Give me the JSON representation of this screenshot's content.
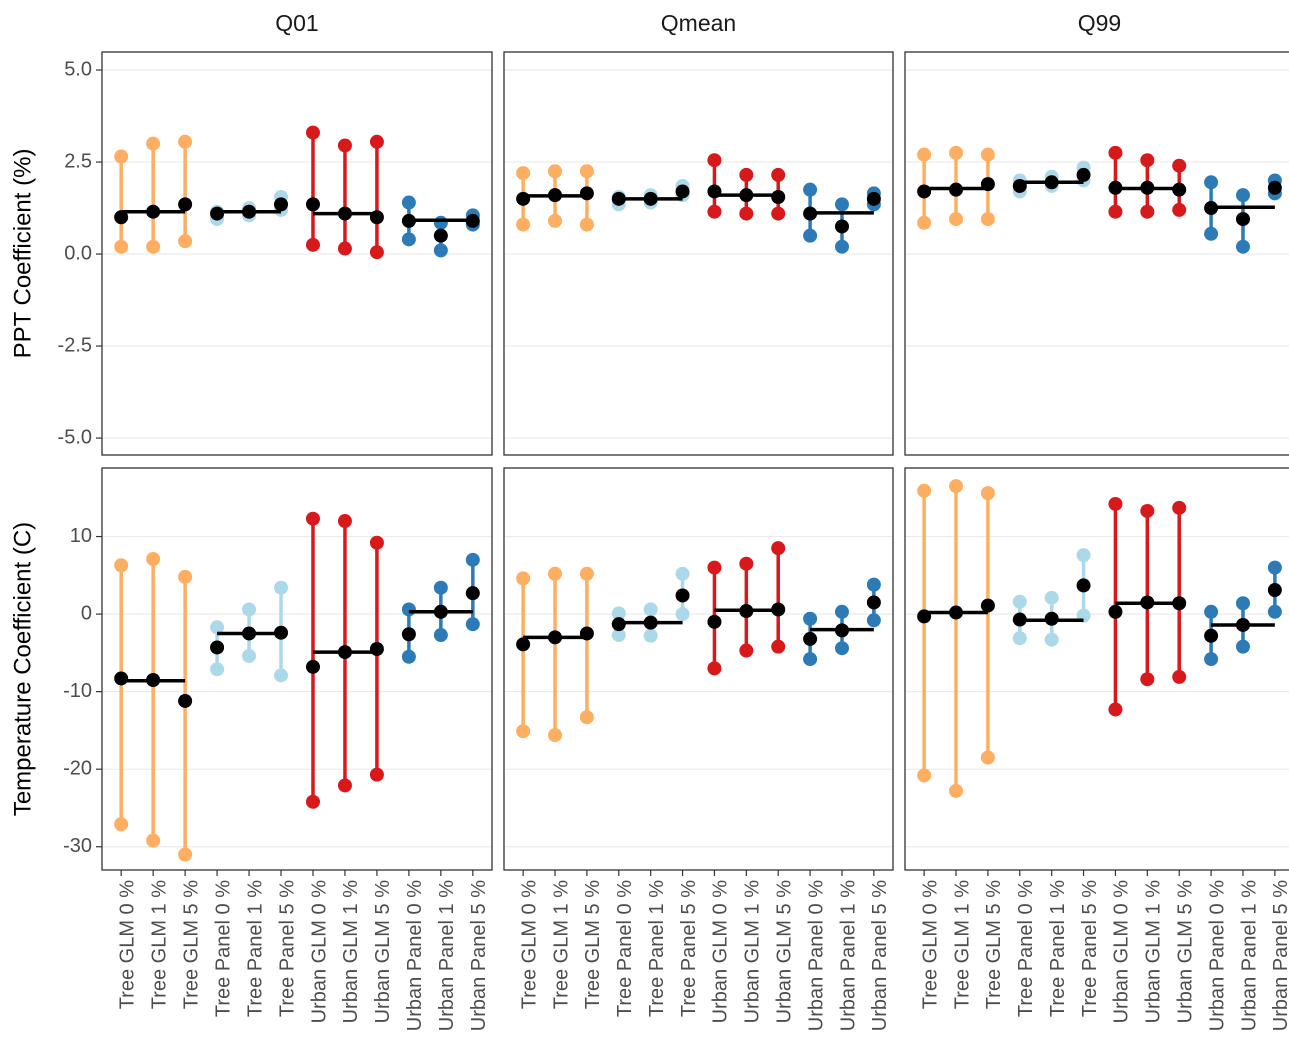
{
  "chart_data": {
    "type": "dotrange",
    "columns": [
      "Q01",
      "Qmean",
      "Q99"
    ],
    "categories": [
      "Tree GLM 0 %",
      "Tree GLM 1 %",
      "Tree GLM 5 %",
      "Tree Panel 0 %",
      "Tree Panel 1 %",
      "Tree Panel 5 %",
      "Urban GLM 0 %",
      "Urban GLM 1 %",
      "Urban GLM 5 %",
      "Urban Panel 0 %",
      "Urban Panel 1 %",
      "Urban Panel 5 %"
    ],
    "colors": [
      "#fdae61",
      "#fdae61",
      "#fdae61",
      "#abd9e9",
      "#abd9e9",
      "#abd9e9",
      "#d7191c",
      "#d7191c",
      "#d7191c",
      "#2c7bb6",
      "#2c7bb6",
      "#2c7bb6"
    ],
    "estimate_color": "#000000",
    "grid": true,
    "rows": [
      {
        "ylabel": "PPT Coefficient (%)",
        "ylim": [
          -5.46,
          5.49
        ],
        "yticks": [
          {
            "value": -5,
            "label": "-5.0"
          },
          -2.5,
          {
            "value": 0,
            "label": "0.0"
          },
          2.5,
          {
            "value": 5,
            "label": "5.0"
          }
        ],
        "panels": [
          {
            "estimate": [
              1.0,
              1.15,
              1.35,
              1.1,
              1.15,
              1.35,
              1.35,
              1.1,
              1.0,
              0.9,
              0.5,
              0.9
            ],
            "lower": [
              0.2,
              0.2,
              0.35,
              0.95,
              1.05,
              1.2,
              0.25,
              0.15,
              0.05,
              0.4,
              0.1,
              0.8
            ],
            "upper": [
              2.65,
              3.0,
              3.05,
              1.15,
              1.25,
              1.55,
              3.3,
              2.95,
              3.05,
              1.4,
              0.85,
              1.05
            ],
            "group_means": [
              1.15,
              1.15,
              1.1,
              0.92
            ]
          },
          {
            "estimate": [
              1.5,
              1.6,
              1.65,
              1.5,
              1.5,
              1.7,
              1.7,
              1.6,
              1.55,
              1.1,
              0.75,
              1.5
            ],
            "lower": [
              0.8,
              0.9,
              0.8,
              1.35,
              1.4,
              1.6,
              1.15,
              1.1,
              1.1,
              0.5,
              0.2,
              1.35
            ],
            "upper": [
              2.2,
              2.25,
              2.25,
              1.55,
              1.6,
              1.85,
              2.55,
              2.15,
              2.15,
              1.75,
              1.35,
              1.65
            ],
            "group_means": [
              1.58,
              1.5,
              1.6,
              1.12
            ]
          },
          {
            "estimate": [
              1.7,
              1.75,
              1.9,
              1.85,
              1.95,
              2.15,
              1.8,
              1.8,
              1.75,
              1.25,
              0.95,
              1.8
            ],
            "lower": [
              0.85,
              0.95,
              0.95,
              1.7,
              1.85,
              2.0,
              1.15,
              1.15,
              1.2,
              0.55,
              0.2,
              1.65
            ],
            "upper": [
              2.7,
              2.75,
              2.7,
              2.0,
              2.1,
              2.35,
              2.75,
              2.55,
              2.4,
              1.95,
              1.6,
              2.0
            ],
            "group_means": [
              1.78,
              1.95,
              1.78,
              1.27
            ]
          }
        ]
      },
      {
        "ylabel": "Temperature Coefficient (C)",
        "ylim": [
          -33.0,
          18.84
        ],
        "yticks": [
          -30,
          -20,
          -10,
          0,
          10
        ],
        "panels": [
          {
            "estimate": [
              -8.3,
              -8.5,
              -11.2,
              -4.3,
              -2.5,
              -2.4,
              -6.8,
              -4.9,
              -4.5,
              -2.6,
              0.3,
              2.7
            ],
            "lower": [
              -27.1,
              -29.2,
              -31.0,
              -7.1,
              -5.4,
              -7.9,
              -24.2,
              -22.1,
              -20.7,
              -5.5,
              -2.7,
              -1.3
            ],
            "upper": [
              6.3,
              7.1,
              4.8,
              -1.7,
              0.6,
              3.4,
              12.3,
              12.0,
              9.2,
              0.6,
              3.4,
              7.0
            ],
            "group_means": [
              -8.6,
              -2.5,
              -4.9,
              0.3
            ]
          },
          {
            "estimate": [
              -3.9,
              -3.0,
              -2.5,
              -1.3,
              -1.1,
              2.4,
              -1.0,
              0.4,
              0.6,
              -3.2,
              -2.1,
              1.5
            ],
            "lower": [
              -15.1,
              -15.6,
              -13.3,
              -2.7,
              -2.8,
              0.0,
              -7.0,
              -4.7,
              -4.2,
              -5.8,
              -4.4,
              -0.8
            ],
            "upper": [
              4.6,
              5.2,
              5.2,
              0.1,
              0.6,
              5.2,
              6.0,
              6.5,
              8.5,
              -0.6,
              0.3,
              3.8
            ],
            "group_means": [
              -3.0,
              -1.1,
              0.5,
              -2.0
            ]
          },
          {
            "estimate": [
              -0.3,
              0.2,
              1.1,
              -0.7,
              -0.6,
              3.7,
              0.3,
              1.5,
              1.4,
              -2.8,
              -1.4,
              3.1
            ],
            "lower": [
              -20.8,
              -22.8,
              -18.5,
              -3.1,
              -3.3,
              -0.2,
              -12.3,
              -8.4,
              -8.1,
              -5.8,
              -4.2,
              0.3
            ],
            "upper": [
              15.9,
              16.5,
              15.6,
              1.6,
              2.1,
              7.6,
              14.2,
              13.3,
              13.7,
              0.3,
              1.4,
              6.0
            ],
            "group_means": [
              0.2,
              -0.8,
              1.4,
              -1.4
            ]
          }
        ]
      }
    ]
  }
}
